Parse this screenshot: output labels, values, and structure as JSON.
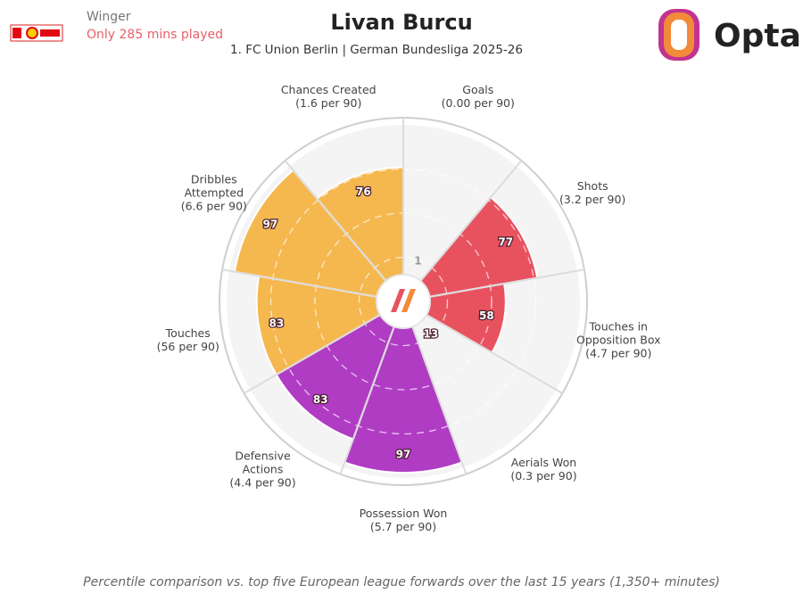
{
  "header": {
    "role": "Winger",
    "minutes_note": "Only 285 mins played",
    "brand": "Opta"
  },
  "chart_data": {
    "type": "pizza",
    "title": "Livan Burcu",
    "subtitle": "1. FC Union Berlin | German Bundesliga 2025-26",
    "categories": [
      "Goals",
      "Shots",
      "Touches in Opposition Box",
      "Aerials Won",
      "Possession Won",
      "Defensive Actions",
      "Touches",
      "Dribbles Attempted",
      "Chances Created"
    ],
    "per90_labels": [
      "(0.00 per 90)",
      "(3.2 per 90)",
      "(4.7 per 90)",
      "(0.3 per 90)",
      "(5.7 per 90)",
      "(4.4 per 90)",
      "(56 per 90)",
      "(6.6 per 90)",
      "(1.6 per 90)"
    ],
    "values": [
      1,
      77,
      58,
      13,
      97,
      83,
      83,
      97,
      76
    ],
    "colors": [
      "#e8525f",
      "#e8525f",
      "#e8525f",
      "#b03cc4",
      "#b03cc4",
      "#b03cc4",
      "#f5b84f",
      "#f5b84f",
      "#f5b84f"
    ],
    "ylim": [
      0,
      100
    ],
    "yticks": [
      25,
      50,
      75
    ],
    "grid": true,
    "footnote": "Percentile comparison vs. top five European league forwards over the last 15 years (1,350+ minutes)"
  }
}
